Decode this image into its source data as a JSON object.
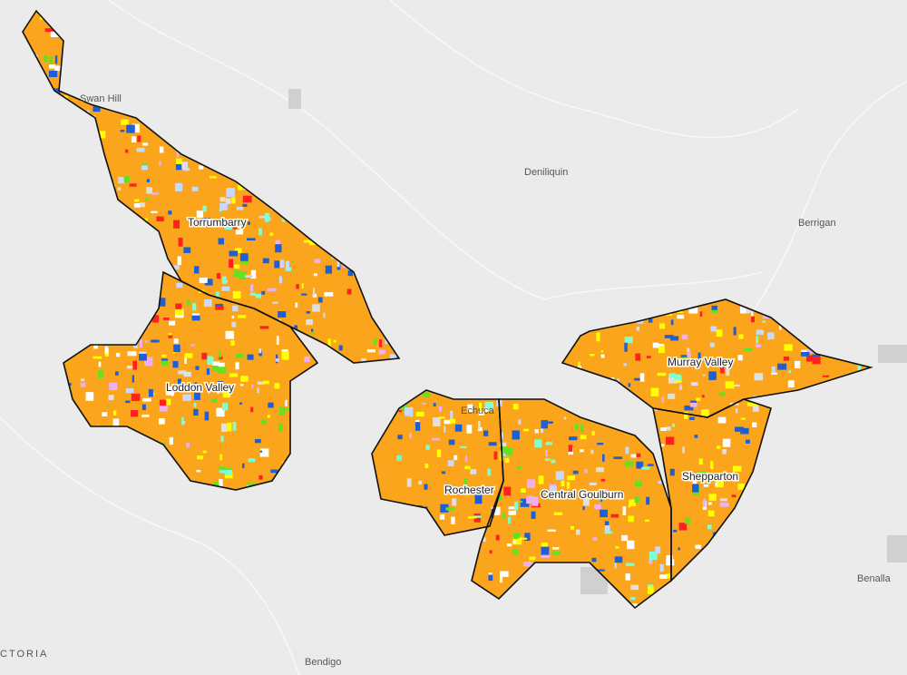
{
  "map": {
    "districts": [
      "Torrumbarry",
      "Loddon Valley",
      "Rochester",
      "Central Goulburn",
      "Murray Valley",
      "Shepparton"
    ],
    "places": [
      "Swan Hill",
      "Deniliquin",
      "Berrigan",
      "Echuca",
      "Benalla",
      "Bendigo",
      "CTORIA"
    ]
  }
}
